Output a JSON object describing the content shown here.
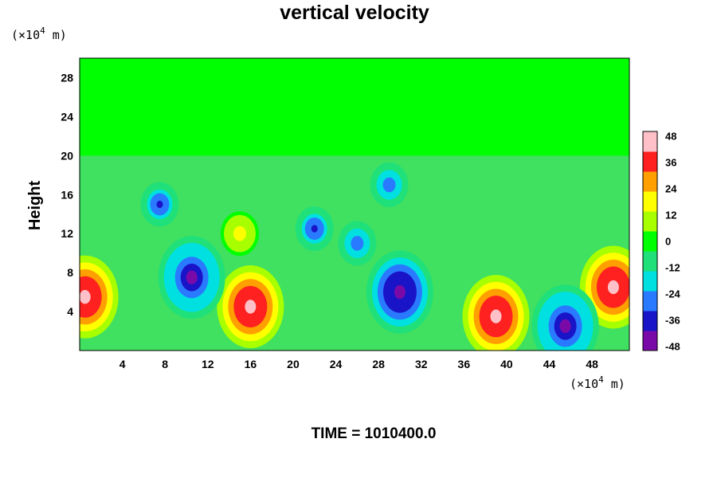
{
  "chart_data": {
    "type": "heatmap",
    "title": "vertical velocity",
    "ylabel": "Height",
    "x_unit": "(×10",
    "x_unit_exp": "4",
    "x_unit_tail": " m)",
    "y_unit": "(×10",
    "y_unit_exp": "4",
    "y_unit_tail": " m)",
    "xlim": [
      0,
      51.5
    ],
    "ylim": [
      0,
      30
    ],
    "xticks": [
      4,
      8,
      12,
      16,
      20,
      24,
      28,
      32,
      36,
      40,
      44,
      48
    ],
    "yticks": [
      4,
      8,
      12,
      16,
      20,
      24,
      28
    ],
    "color_scale": {
      "range": [
        -50,
        50
      ],
      "ticks": [
        48,
        36,
        24,
        12,
        0,
        -12,
        -24,
        -36,
        -48
      ],
      "colors": [
        "#7a0aa8",
        "#1a14c8",
        "#2a7aff",
        "#00e0e0",
        "#20e07a",
        "#00ff00",
        "#a8ff00",
        "#ffff00",
        "#ffa000",
        "#ff2020",
        "#ffc0c8"
      ]
    },
    "features": [
      {
        "kind": "updraft",
        "x": 0.5,
        "y": 5.5,
        "peak": 48
      },
      {
        "kind": "updraft",
        "x": 16,
        "y": 4.5,
        "peak": 48
      },
      {
        "kind": "updraft",
        "x": 15,
        "y": 12,
        "peak": 20
      },
      {
        "kind": "updraft",
        "x": 39,
        "y": 3.5,
        "peak": 48
      },
      {
        "kind": "updraft",
        "x": 50,
        "y": 6.5,
        "peak": 48
      },
      {
        "kind": "downdraft",
        "x": 30,
        "y": 6,
        "peak": -48
      },
      {
        "kind": "downdraft",
        "x": 10.5,
        "y": 7.5,
        "peak": -44
      },
      {
        "kind": "downdraft",
        "x": 45.5,
        "y": 2.5,
        "peak": -44
      },
      {
        "kind": "downdraft",
        "x": 7.5,
        "y": 15,
        "peak": -36
      },
      {
        "kind": "downdraft",
        "x": 22,
        "y": 12.5,
        "peak": -36
      },
      {
        "kind": "downdraft",
        "x": 26,
        "y": 11,
        "peak": -30
      },
      {
        "kind": "downdraft",
        "x": 29,
        "y": 17,
        "peak": -30
      }
    ]
  },
  "footer": {
    "time_label": "TIME = 1010400.0"
  }
}
